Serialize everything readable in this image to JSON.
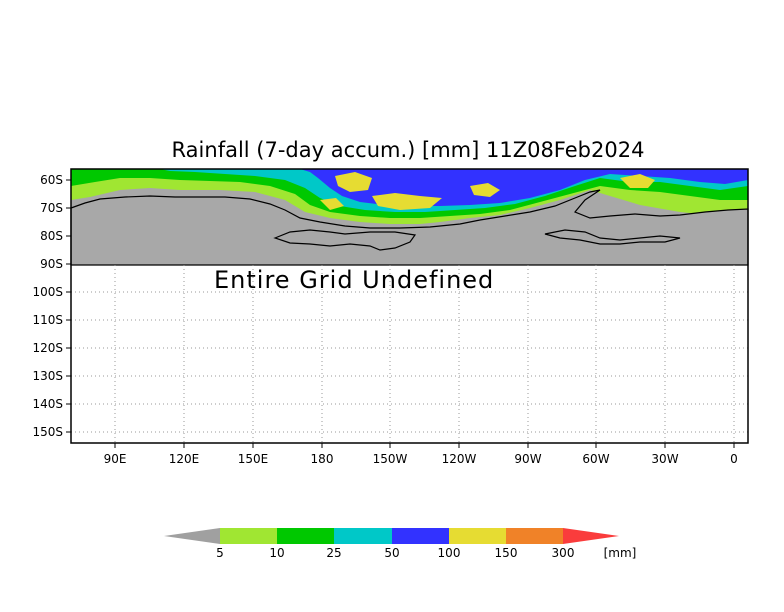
{
  "title": "Rainfall (7-day accum.) [mm] 11Z08Feb2024",
  "undefined_message": "Entire Grid Undefined",
  "lat_labels": [
    "60S",
    "70S",
    "80S",
    "90S",
    "100S",
    "110S",
    "120S",
    "130S",
    "140S",
    "150S"
  ],
  "lon_labels": [
    "90E",
    "120E",
    "150E",
    "180",
    "150W",
    "120W",
    "90W",
    "60W",
    "30W",
    "0"
  ],
  "legend": {
    "values": [
      "5",
      "10",
      "25",
      "50",
      "100",
      "150",
      "300"
    ],
    "unit": "[mm]",
    "colors": {
      "below": "#a0a0a0",
      "c5_10": "#a0e632",
      "c10_25": "#00c800",
      "c25_50": "#00c8c8",
      "c50_100": "#3232ff",
      "c100_150": "#e6dc32",
      "c150_300": "#f08228",
      "above": "#fa3c3c"
    }
  },
  "colors": {
    "land": "#a8a8a8",
    "ocean": "#ffffff",
    "coastline": "#000000",
    "grid": "#999999"
  }
}
